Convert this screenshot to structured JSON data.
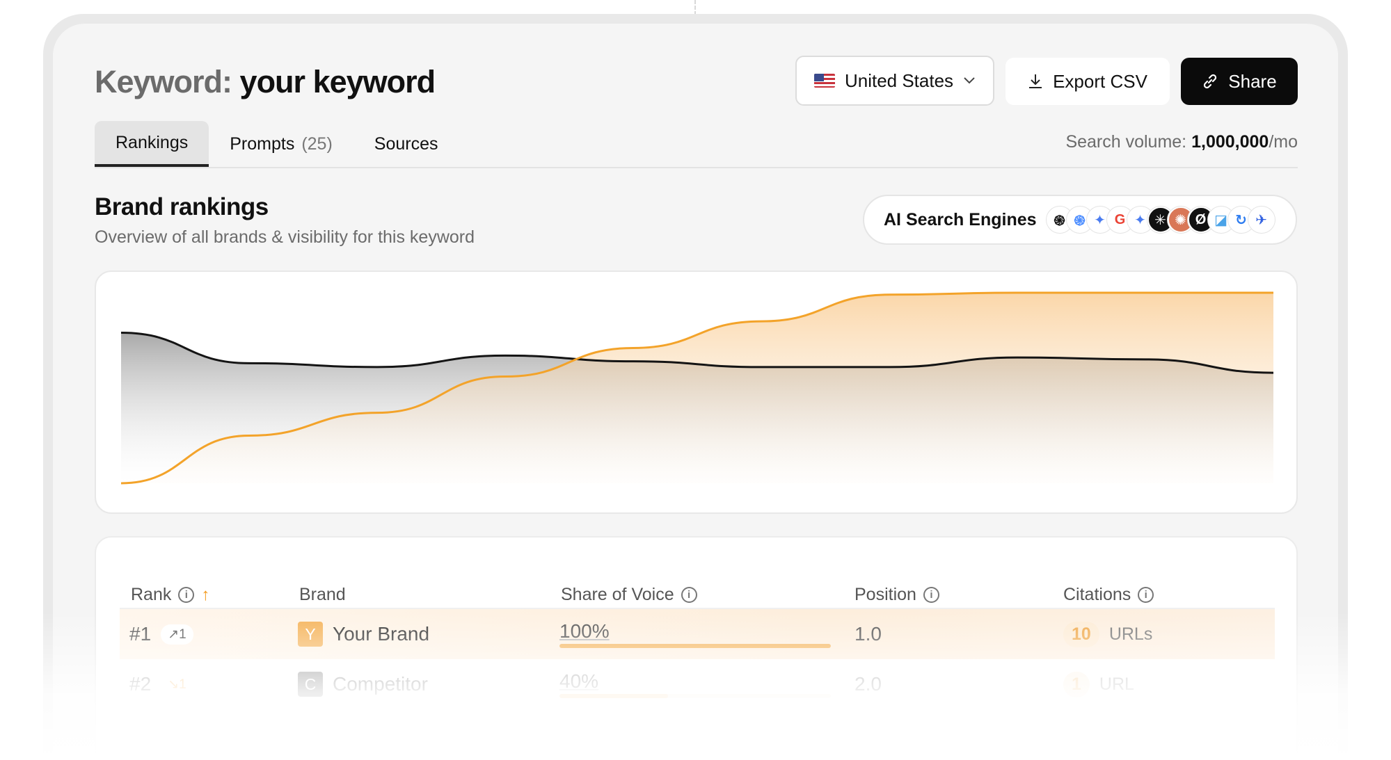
{
  "header": {
    "title_prefix": "Keyword:",
    "title_keyword": "your keyword",
    "country": "United States",
    "export_label": "Export CSV",
    "share_label": "Share"
  },
  "tabs": [
    {
      "label": "Rankings",
      "count": ""
    },
    {
      "label": "Prompts",
      "count": "(25)"
    },
    {
      "label": "Sources",
      "count": ""
    }
  ],
  "search_volume": {
    "label": "Search volume:",
    "value": "1,000,000",
    "unit": "/mo"
  },
  "section": {
    "title": "Brand rankings",
    "subtitle": "Overview of all brands & visibility for this keyword"
  },
  "engines": {
    "label": "AI Search Engines",
    "logos": [
      {
        "name": "chatgpt-icon",
        "glyph": "֍",
        "bg": "#ffffff",
        "fg": "#111111"
      },
      {
        "name": "meta-ai-icon",
        "glyph": "֍",
        "bg": "#ffffff",
        "fg": "#4a8cff"
      },
      {
        "name": "gemini-icon",
        "glyph": "✦",
        "bg": "#ffffff",
        "fg": "#4a7cf0"
      },
      {
        "name": "google-icon",
        "glyph": "G",
        "bg": "#ffffff",
        "fg": "#ea4335"
      },
      {
        "name": "gemini-alt-icon",
        "glyph": "✦",
        "bg": "#ffffff",
        "fg": "#4a7cf0"
      },
      {
        "name": "perplexity-icon",
        "glyph": "✳",
        "bg": "#111111",
        "fg": "#ffffff"
      },
      {
        "name": "claude-icon",
        "glyph": "✺",
        "bg": "#d97757",
        "fg": "#ffffff"
      },
      {
        "name": "grok-icon",
        "glyph": "Ø",
        "bg": "#111111",
        "fg": "#ffffff"
      },
      {
        "name": "copilot-icon",
        "glyph": "◪",
        "bg": "#ffffff",
        "fg": "#4aa3e8"
      },
      {
        "name": "deepseek-icon",
        "glyph": "↻",
        "bg": "#ffffff",
        "fg": "#2d7cf0"
      },
      {
        "name": "mistral-icon",
        "glyph": "✈",
        "bg": "#ffffff",
        "fg": "#2f5fe0"
      }
    ]
  },
  "chart_data": {
    "type": "area",
    "series": [
      {
        "color": "#141414",
        "values": [
          0.79,
          0.63,
          0.61,
          0.67,
          0.64,
          0.61,
          0.61,
          0.66,
          0.65,
          0.58
        ]
      },
      {
        "color": "#f3a32a",
        "values": [
          0.0,
          0.25,
          0.37,
          0.56,
          0.71,
          0.85,
          0.99,
          1.0,
          1.0,
          1.0
        ]
      }
    ],
    "grid": false,
    "legend": "none"
  },
  "table": {
    "columns": [
      "Rank",
      "Brand",
      "Share of Voice",
      "Position",
      "Citations"
    ],
    "rows": [
      {
        "rank": "#1",
        "delta": "↗1",
        "brand": "Your Brand",
        "initial": "Y",
        "brand_color": "#f5b45b",
        "sov": "100%",
        "sov_fraction": 1.0,
        "position": "1.0",
        "citations": "10",
        "citations_unit": "URLs"
      },
      {
        "rank": "#2",
        "delta": "↘1",
        "brand": "Competitor",
        "initial": "C",
        "brand_color": "#333333",
        "sov": "40%",
        "sov_fraction": 0.4,
        "position": "2.0",
        "citations": "1",
        "citations_unit": "URL"
      }
    ]
  }
}
